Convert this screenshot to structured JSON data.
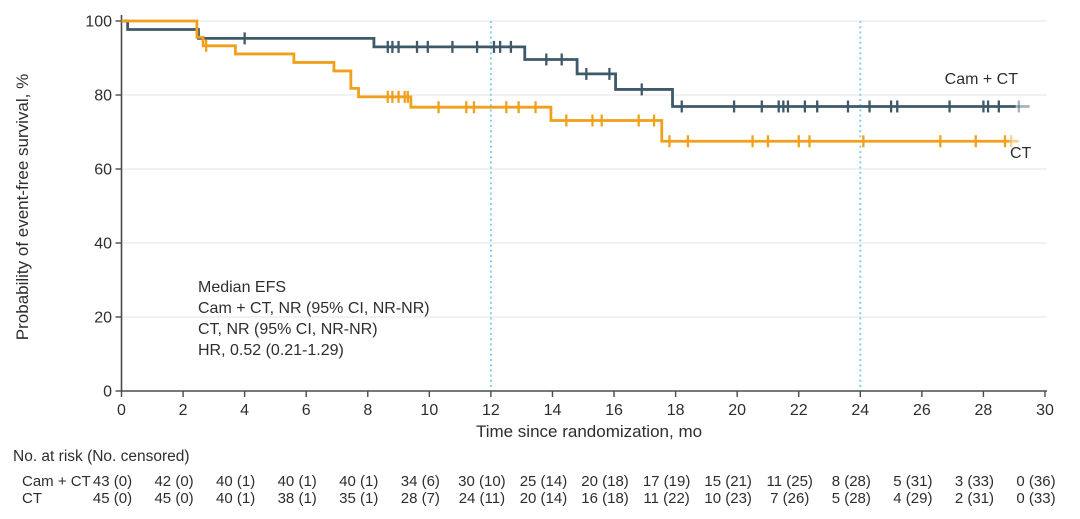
{
  "figure": {
    "y_axis_title": "Probability of event-free survival, %",
    "x_axis_title": "Time since randomization, mo",
    "annotation": {
      "line1": "Median EFS",
      "line2": "Cam + CT, NR (95% CI, NR-NR)",
      "line3": "CT, NR (95% CI, NR-NR)",
      "line4": "HR, 0.52 (0.21-1.29)"
    },
    "series_labels": {
      "camct": "Cam + CT",
      "ct": "CT"
    },
    "risk_table": {
      "header": "No. at risk (No. censored)",
      "rows": [
        {
          "label": "Cam + CT",
          "values": [
            "43 (0)",
            "42 (0)",
            "40 (1)",
            "40 (1)",
            "40 (1)",
            "34 (6)",
            "30 (10)",
            "25 (14)",
            "20 (18)",
            "17 (19)",
            "15 (21)",
            "11 (25)",
            "8 (28)",
            "5 (31)",
            "3 (33)",
            "0 (36)"
          ]
        },
        {
          "label": "CT",
          "values": [
            "45 (0)",
            "45 (0)",
            "40 (1)",
            "38 (1)",
            "35 (1)",
            "28 (7)",
            "24 (11)",
            "20 (14)",
            "16 (18)",
            "11 (22)",
            "10 (23)",
            "7 (26)",
            "5 (28)",
            "4 (29)",
            "2 (31)",
            "0 (33)"
          ]
        }
      ]
    }
  },
  "chart_data": {
    "type": "line",
    "subtype": "kaplan-meier-step",
    "xlabel": "Time since randomization, mo",
    "ylabel": "Probability of event-free survival, %",
    "xlim": [
      0,
      30
    ],
    "ylim": [
      0,
      100
    ],
    "x_ticks": [
      0,
      2,
      4,
      6,
      8,
      10,
      12,
      14,
      16,
      18,
      20,
      22,
      24,
      26,
      28,
      30
    ],
    "y_ticks": [
      0,
      20,
      40,
      60,
      80,
      100
    ],
    "grid": "horizontal-light",
    "reference_lines_x": [
      12,
      24
    ],
    "colors": {
      "camct": "#3E5A69",
      "ct": "#F0A01A",
      "reference": "#85CCE8",
      "grid": "#EBEBEB",
      "axis": "#4b4b4b"
    },
    "series": [
      {
        "name": "Cam + CT",
        "color": "#3E5A69",
        "steps": [
          [
            0,
            100
          ],
          [
            0.2,
            97.7
          ],
          [
            2.5,
            95.3
          ],
          [
            8.2,
            93.0
          ],
          [
            13.1,
            89.6
          ],
          [
            14.8,
            85.7
          ],
          [
            16.05,
            81.5
          ],
          [
            17.9,
            76.9
          ]
        ],
        "end_solid": 29.05,
        "end_light": 29.5,
        "censors": [
          [
            4.0,
            95.3
          ],
          [
            8.65,
            93.0
          ],
          [
            8.8,
            93.0
          ],
          [
            9.0,
            93.0
          ],
          [
            9.6,
            93.0
          ],
          [
            9.95,
            93.0
          ],
          [
            10.75,
            93.0
          ],
          [
            11.55,
            93.0
          ],
          [
            12.1,
            93.0
          ],
          [
            12.3,
            93.0
          ],
          [
            12.65,
            93.0
          ],
          [
            13.8,
            89.6
          ],
          [
            14.3,
            89.6
          ],
          [
            15.1,
            85.7
          ],
          [
            15.85,
            85.7
          ],
          [
            16.9,
            81.5
          ],
          [
            18.2,
            76.9
          ],
          [
            19.9,
            76.9
          ],
          [
            20.8,
            76.9
          ],
          [
            21.35,
            76.9
          ],
          [
            21.5,
            76.9
          ],
          [
            21.65,
            76.9
          ],
          [
            22.2,
            76.9
          ],
          [
            22.6,
            76.9
          ],
          [
            23.6,
            76.9
          ],
          [
            24.3,
            76.9
          ],
          [
            25.0,
            76.9
          ],
          [
            25.2,
            76.9
          ],
          [
            26.9,
            76.9
          ],
          [
            28.0,
            76.9
          ],
          [
            28.15,
            76.9
          ],
          [
            28.5,
            76.9
          ]
        ],
        "light_censors": [
          [
            29.15,
            76.9
          ]
        ]
      },
      {
        "name": "CT",
        "color": "#F0A01A",
        "steps": [
          [
            0,
            100
          ],
          [
            2.45,
            95.6
          ],
          [
            2.65,
            93.3
          ],
          [
            3.7,
            91.1
          ],
          [
            5.6,
            88.8
          ],
          [
            6.9,
            86.5
          ],
          [
            7.45,
            81.8
          ],
          [
            7.7,
            79.5
          ],
          [
            9.4,
            76.7
          ],
          [
            13.95,
            73.1
          ],
          [
            17.55,
            67.5
          ]
        ],
        "end_solid": 28.85,
        "end_light": 29.15,
        "censors": [
          [
            2.75,
            93.3
          ],
          [
            8.65,
            79.5
          ],
          [
            8.8,
            79.5
          ],
          [
            9.0,
            79.5
          ],
          [
            9.2,
            79.5
          ],
          [
            9.3,
            79.5
          ],
          [
            10.3,
            76.7
          ],
          [
            11.2,
            76.7
          ],
          [
            11.45,
            76.7
          ],
          [
            12.5,
            76.7
          ],
          [
            12.9,
            76.7
          ],
          [
            13.45,
            76.7
          ],
          [
            14.45,
            73.1
          ],
          [
            15.3,
            73.1
          ],
          [
            15.6,
            73.1
          ],
          [
            16.8,
            73.1
          ],
          [
            17.3,
            73.1
          ],
          [
            17.8,
            67.5
          ],
          [
            18.4,
            67.5
          ],
          [
            20.5,
            67.5
          ],
          [
            21.0,
            67.5
          ],
          [
            22.0,
            67.5
          ],
          [
            22.35,
            67.5
          ],
          [
            24.1,
            67.5
          ],
          [
            26.6,
            67.5
          ],
          [
            27.75,
            67.5
          ],
          [
            28.7,
            67.5
          ]
        ],
        "light_censors": [
          [
            28.9,
            67.5
          ]
        ]
      }
    ],
    "annotation_lines": [
      "Median EFS",
      "Cam + CT, NR (95% CI, NR-NR)",
      "CT, NR (95% CI, NR-NR)",
      "HR, 0.52 (0.21-1.29)"
    ],
    "risk_table_months": [
      0,
      2,
      4,
      6,
      8,
      10,
      12,
      14,
      16,
      18,
      20,
      22,
      24,
      26,
      28,
      30
    ]
  }
}
